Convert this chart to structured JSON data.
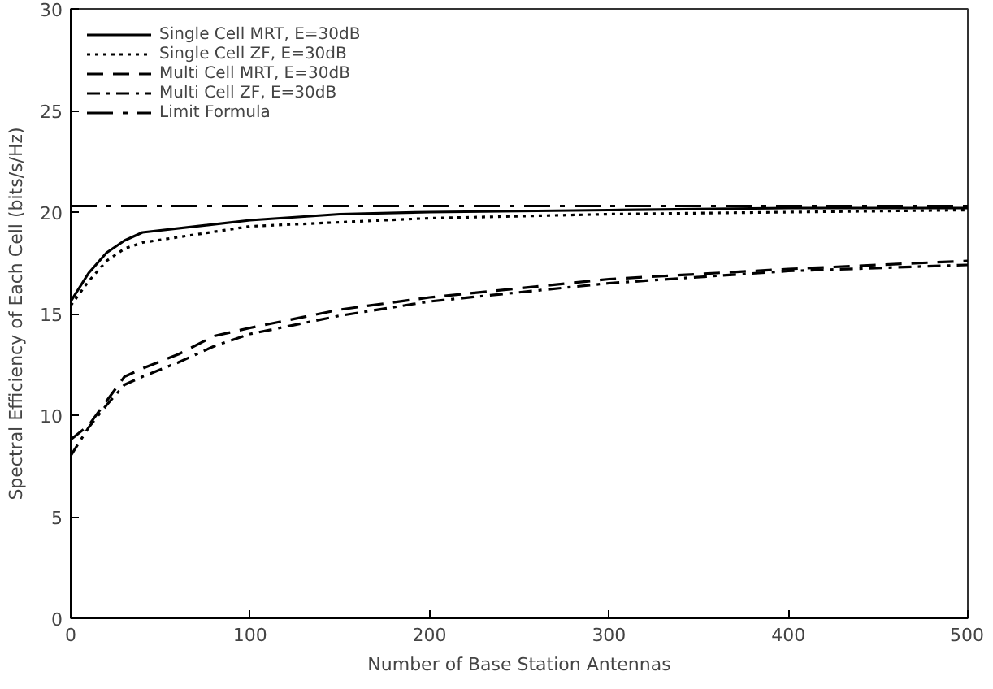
{
  "chart_data": {
    "type": "line",
    "xlabel": "Number of Base Station Antennas",
    "ylabel": "Spectral Efficiency of Each Cell (bits/s/Hz)",
    "xlim": [
      0,
      500
    ],
    "ylim": [
      0,
      30
    ],
    "xticks": [
      0,
      100,
      200,
      300,
      400,
      500
    ],
    "yticks": [
      0,
      5,
      10,
      15,
      20,
      25,
      30
    ],
    "grid": false,
    "legend": "top left",
    "marker": "none",
    "series": [
      {
        "name": "Single Cell MRT, E=30dB",
        "color": "#000000",
        "line_style": "solid",
        "x": [
          0,
          10,
          20,
          30,
          40,
          100,
          150,
          200,
          300,
          400,
          500
        ],
        "values": [
          15.6,
          17,
          18,
          18.6,
          19.0,
          19.6,
          19.9,
          20.0,
          20.1,
          20.2,
          20.2
        ]
      },
      {
        "name": "Single Cell ZF, E=30dB",
        "color": "#000000",
        "line_style": "dotted",
        "x": [
          0,
          10,
          20,
          30,
          40,
          100,
          200,
          300,
          400,
          500
        ],
        "values": [
          15.4,
          16.6,
          17.6,
          18.2,
          18.5,
          19.3,
          19.7,
          19.9,
          20.0,
          20.1
        ]
      },
      {
        "name": "Multi Cell MRT, E=30dB",
        "color": "#000000",
        "line_style": "dashed",
        "x": [
          0,
          10,
          20,
          30,
          40,
          60,
          80,
          100,
          150,
          200,
          300,
          400,
          500
        ],
        "values": [
          8.8,
          9.5,
          10.7,
          11.9,
          12.3,
          13.0,
          13.9,
          14.3,
          15.2,
          15.8,
          16.7,
          17.2,
          17.6
        ]
      },
      {
        "name": "Multi Cell ZF, E=30dB",
        "color": "#000000",
        "line_style": "dashdot",
        "x": [
          0,
          10,
          20,
          30,
          40,
          60,
          80,
          100,
          150,
          200,
          300,
          400,
          500
        ],
        "values": [
          8.0,
          9.4,
          10.5,
          11.5,
          11.9,
          12.6,
          13.4,
          14.0,
          14.9,
          15.6,
          16.5,
          17.1,
          17.4
        ]
      },
      {
        "name": "Limit Formula",
        "color": "#000000",
        "line_style": "longdashdot",
        "x": [
          0,
          500
        ],
        "values": [
          20.3,
          20.3
        ]
      }
    ]
  }
}
